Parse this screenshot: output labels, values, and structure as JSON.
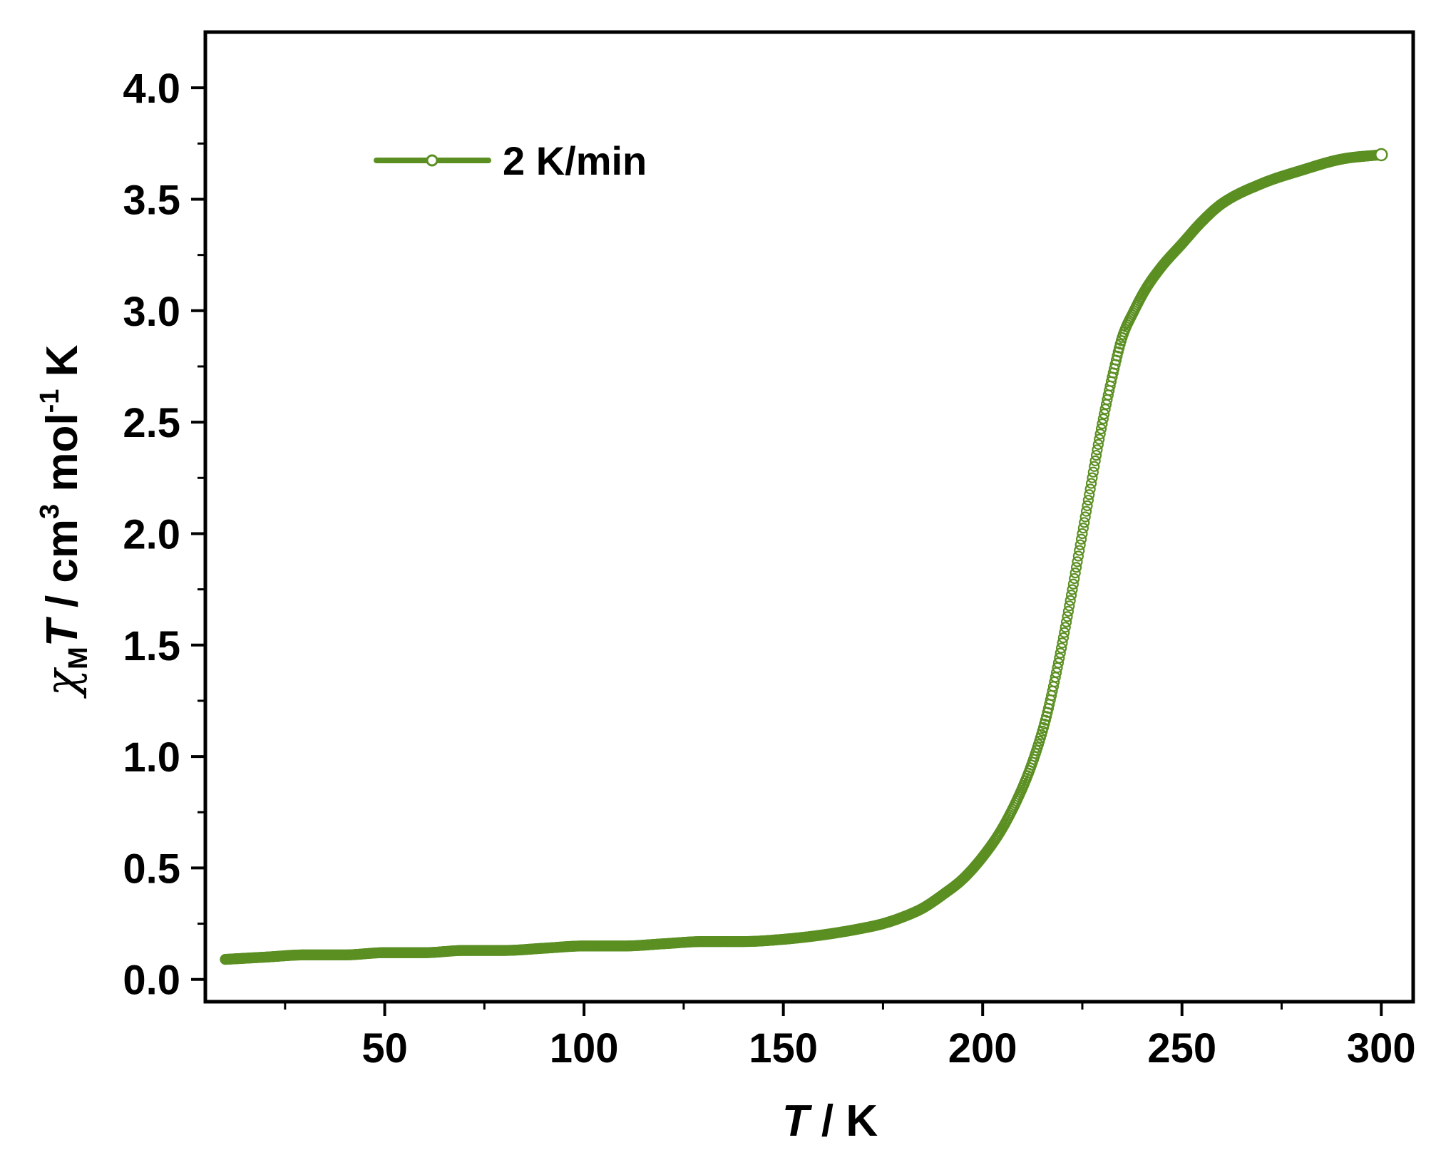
{
  "chart_data": {
    "type": "scatter",
    "title": "",
    "xlabel": {
      "main": "T",
      "rest": " / K"
    },
    "ylabel": {
      "chi": "χ",
      "sub": "M",
      "T": "T",
      "mid": " / cm",
      "sup3": "3",
      "mol": " mol",
      "supm1": "-1",
      "K": " K"
    },
    "xlim": [
      5,
      308
    ],
    "ylim": [
      -0.1,
      4.25
    ],
    "xticks": [
      50,
      100,
      150,
      200,
      250,
      300
    ],
    "xtick_labels": [
      "50",
      "100",
      "150",
      "200",
      "250",
      "300"
    ],
    "yticks": [
      0.0,
      0.5,
      1.0,
      1.5,
      2.0,
      2.5,
      3.0,
      3.5,
      4.0
    ],
    "ytick_labels": [
      "0.0",
      "0.5",
      "1.0",
      "1.5",
      "2.0",
      "2.5",
      "3.0",
      "3.5",
      "4.0"
    ],
    "grid": false,
    "legend_position": "top-left",
    "series": [
      {
        "name": "2 K/min",
        "color": "#5b8f22",
        "marker": "open-circle",
        "x": [
          10,
          20,
          30,
          40,
          50,
          60,
          70,
          80,
          90,
          100,
          110,
          120,
          130,
          140,
          150,
          160,
          170,
          175,
          180,
          185,
          190,
          195,
          200,
          205,
          210,
          213,
          216,
          219,
          222,
          225,
          227,
          229,
          231,
          233,
          235,
          238,
          241,
          245,
          250,
          255,
          260,
          270,
          280,
          290,
          300
        ],
        "y": [
          0.09,
          0.1,
          0.11,
          0.11,
          0.12,
          0.12,
          0.13,
          0.13,
          0.14,
          0.15,
          0.15,
          0.16,
          0.17,
          0.17,
          0.18,
          0.2,
          0.23,
          0.25,
          0.28,
          0.32,
          0.38,
          0.45,
          0.55,
          0.68,
          0.86,
          1.0,
          1.18,
          1.42,
          1.7,
          2.0,
          2.2,
          2.4,
          2.58,
          2.74,
          2.88,
          3.0,
          3.1,
          3.2,
          3.3,
          3.4,
          3.48,
          3.57,
          3.63,
          3.68,
          3.7
        ]
      }
    ]
  }
}
